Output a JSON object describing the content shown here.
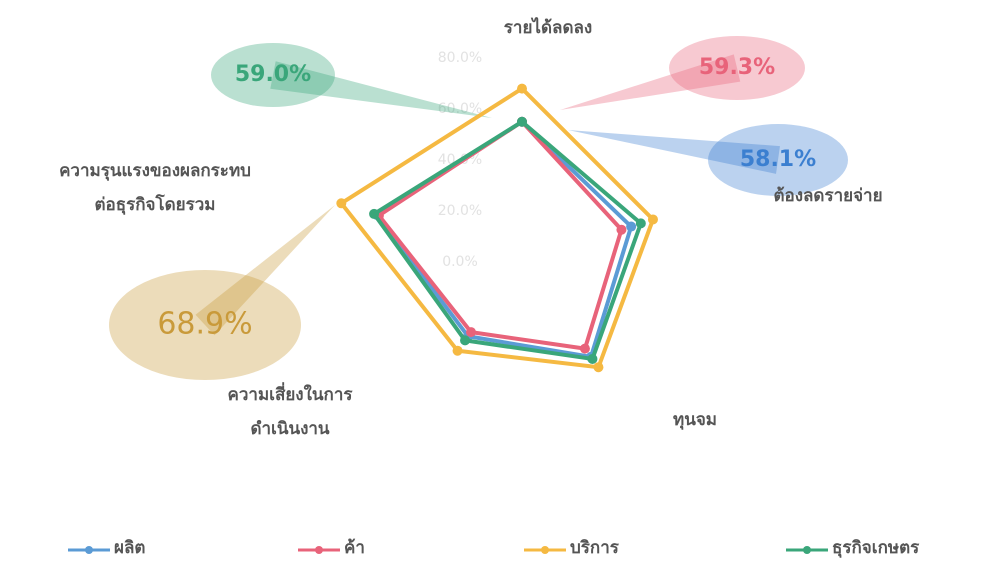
{
  "chart_data": {
    "type": "radar",
    "categories": [
      "รายได้ลดลง",
      "ต้องลดรายจ่าย",
      "ทุนจม",
      "ความเสี่ยงในการ\nดำเนินงาน",
      "ความรุนแรงของผลกระทบ\nต่อธุรกิจโดยรวม"
    ],
    "series": [
      {
        "name": "ผลิต",
        "color": "#5b9bd5",
        "values": [
          55,
          45,
          46,
          36,
          60
        ]
      },
      {
        "name": "ค้า",
        "color": "#e8637a",
        "values": [
          55,
          41,
          42,
          34,
          59
        ]
      },
      {
        "name": "บริการ",
        "color": "#f5b942",
        "values": [
          68,
          54,
          51,
          43,
          74.5
        ]
      },
      {
        "name": "ธุรกิจเกษตร",
        "color": "#3aa67a",
        "values": [
          55,
          49,
          47,
          38,
          61
        ]
      }
    ],
    "rlim": [
      0,
      80
    ],
    "rticks": [
      {
        "value": 0,
        "label": "0.0%"
      },
      {
        "value": 20,
        "label": "20.0%"
      },
      {
        "value": 40,
        "label": "40.0%"
      },
      {
        "value": 60,
        "label": "60.0%"
      },
      {
        "value": 80,
        "label": "80.0%"
      }
    ],
    "annotations": [
      {
        "text": "59.0%",
        "color": "#3aa67a"
      },
      {
        "text": "59.3%",
        "color": "#e8637a"
      },
      {
        "text": "58.1%",
        "color": "#3b7fd0"
      },
      {
        "text": "68.9%",
        "color": "#c99a3a"
      }
    ],
    "legend": "bottom"
  }
}
